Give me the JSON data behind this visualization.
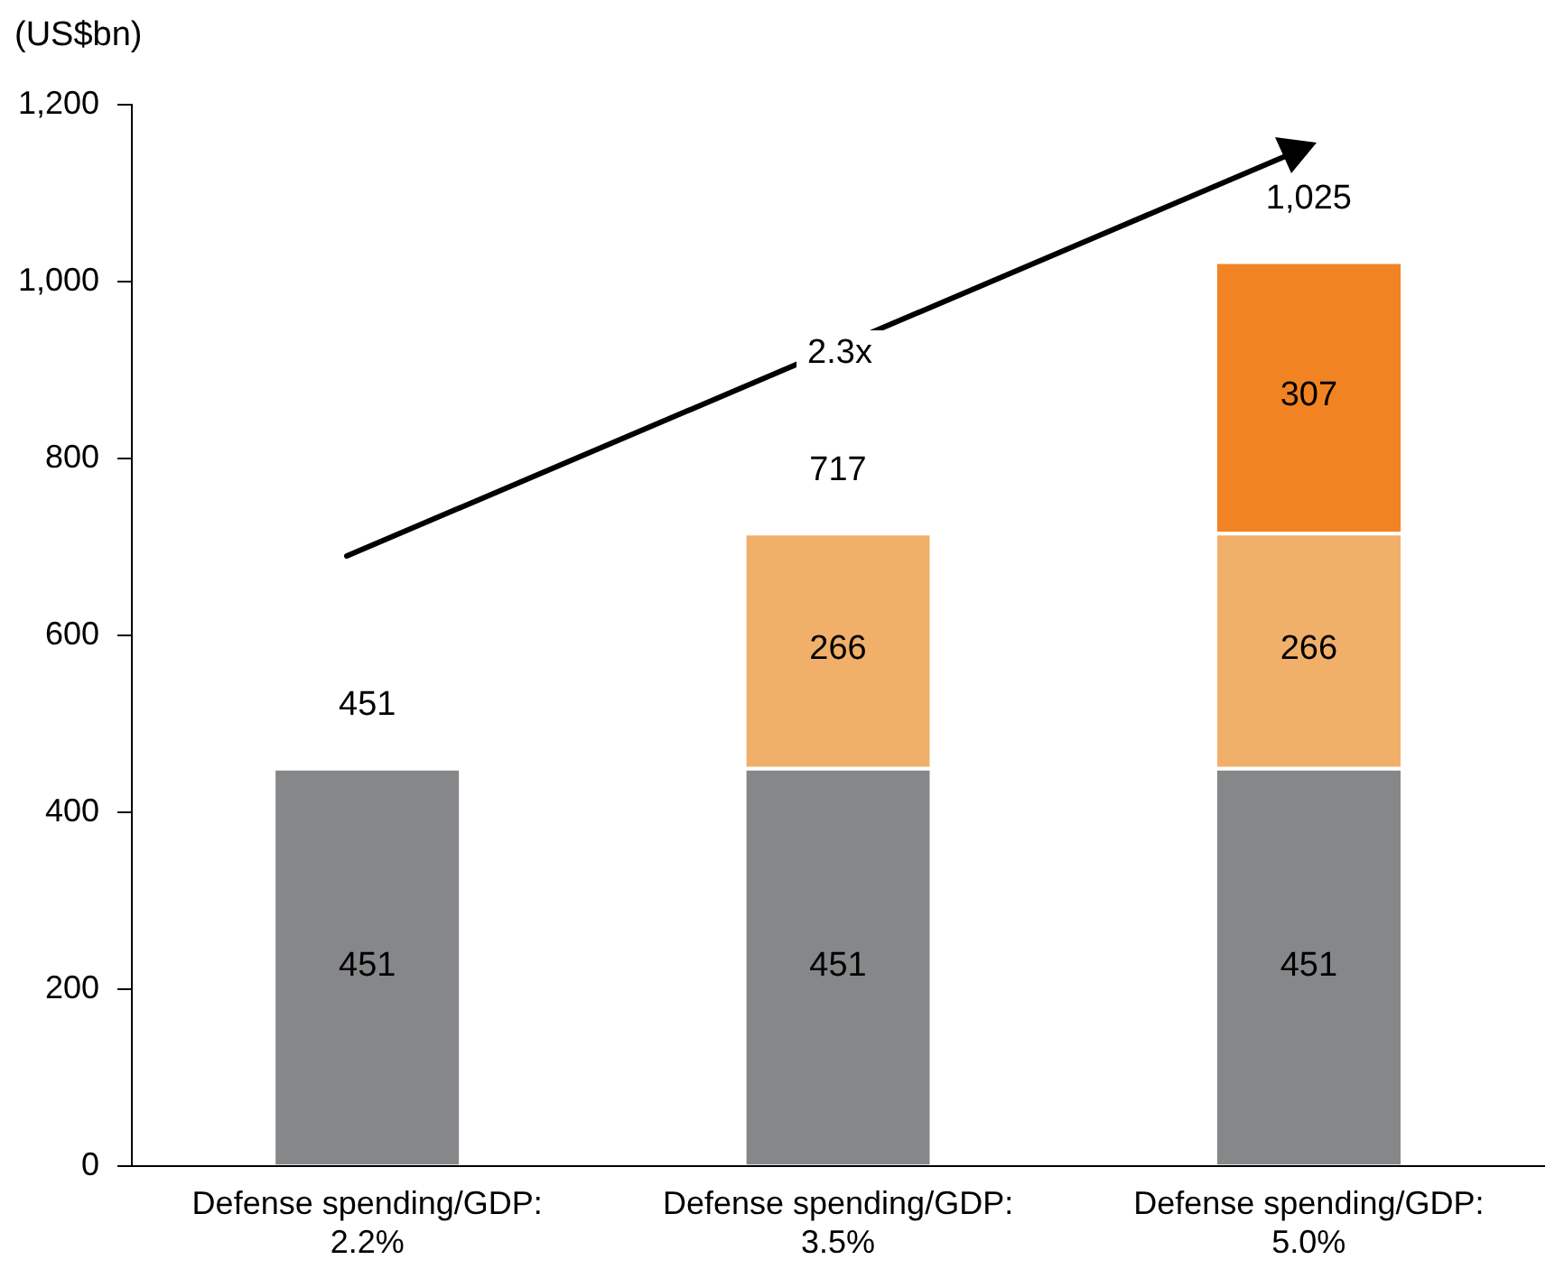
{
  "chart_data": {
    "type": "bar",
    "stacked": true,
    "ylabel": "(US$bn)",
    "categories": [
      "Defense spending/GDP: 2.2%",
      "Defense spending/GDP: 3.5%",
      "Defense spending/GDP: 5.0%"
    ],
    "series": [
      {
        "color": "#858789",
        "values": [
          451,
          451,
          451
        ]
      },
      {
        "color": "#f0b06a",
        "values": [
          null,
          266,
          266
        ]
      },
      {
        "color": "#f28322",
        "values": [
          null,
          null,
          307
        ]
      }
    ],
    "ylim": [
      0,
      1200
    ],
    "yticks": [
      0,
      200,
      400,
      600,
      800,
      {
        "value": 1000,
        "label": "1,000"
      },
      {
        "value": 1200,
        "label": "1,200"
      }
    ],
    "data_labels": true,
    "totals": [
      "451",
      "717",
      "1,025"
    ],
    "annotations": [
      "2.3x"
    ],
    "grid": false,
    "legend": false
  }
}
